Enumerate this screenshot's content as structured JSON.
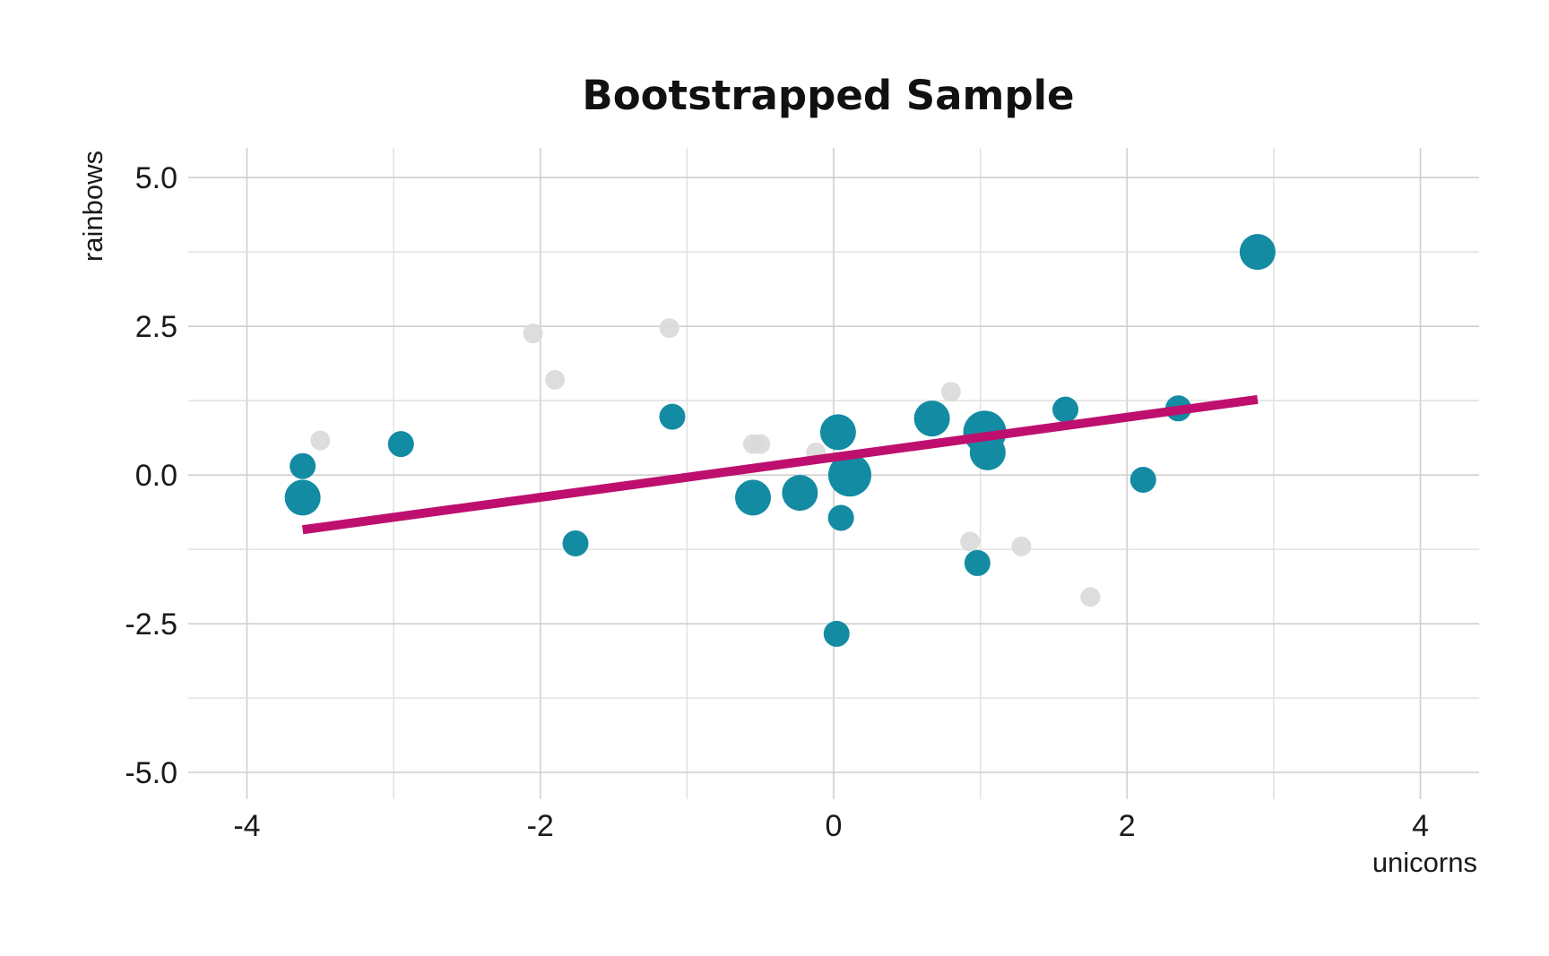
{
  "chart_data": {
    "type": "scatter",
    "title": "Bootstrapped Sample",
    "xlabel": "unicorns",
    "ylabel": "rainbows",
    "xlim": [
      -4.4,
      4.4
    ],
    "ylim": [
      -5.45,
      5.5
    ],
    "x_ticks": [
      -4,
      -2,
      0,
      2,
      4
    ],
    "x_tick_labels": [
      "-4",
      "-2",
      "0",
      "2",
      "4"
    ],
    "y_ticks": [
      5,
      2.5,
      0,
      -2.5,
      -5
    ],
    "y_tick_labels": [
      "5.0",
      "2.5",
      "0.0",
      "-2.5",
      "-5.0"
    ],
    "grid": true,
    "colors": {
      "sampled": "#138ba3",
      "not_sampled": "#d9d9d9",
      "fit_line": "#bf0f6e"
    },
    "not_sampled_points": [
      {
        "x": -3.5,
        "y": 0.58
      },
      {
        "x": -2.05,
        "y": 2.38
      },
      {
        "x": -1.9,
        "y": 1.6
      },
      {
        "x": -1.12,
        "y": 2.47
      },
      {
        "x": -0.55,
        "y": 0.52
      },
      {
        "x": -0.5,
        "y": 0.52
      },
      {
        "x": -0.12,
        "y": 0.38
      },
      {
        "x": 0.8,
        "y": 1.4
      },
      {
        "x": 0.93,
        "y": -1.12
      },
      {
        "x": 1.28,
        "y": -1.2
      },
      {
        "x": 1.75,
        "y": -2.05
      }
    ],
    "sampled_points": [
      {
        "x": -3.62,
        "y": 0.15,
        "count": 1
      },
      {
        "x": -3.62,
        "y": -0.38,
        "count": 2
      },
      {
        "x": -2.95,
        "y": 0.52,
        "count": 1
      },
      {
        "x": -1.76,
        "y": -1.15,
        "count": 1
      },
      {
        "x": -1.1,
        "y": 0.98,
        "count": 1
      },
      {
        "x": -0.55,
        "y": -0.38,
        "count": 2
      },
      {
        "x": -0.23,
        "y": -0.3,
        "count": 2
      },
      {
        "x": 0.03,
        "y": 0.72,
        "count": 2
      },
      {
        "x": 0.05,
        "y": -0.72,
        "count": 1
      },
      {
        "x": 0.02,
        "y": -2.67,
        "count": 1
      },
      {
        "x": 0.11,
        "y": 0.0,
        "count": 3
      },
      {
        "x": 0.67,
        "y": 0.95,
        "count": 2
      },
      {
        "x": 1.03,
        "y": 0.72,
        "count": 3
      },
      {
        "x": 1.05,
        "y": 0.38,
        "count": 2
      },
      {
        "x": 0.98,
        "y": -1.48,
        "count": 1
      },
      {
        "x": 1.58,
        "y": 1.1,
        "count": 1
      },
      {
        "x": 2.11,
        "y": -0.08,
        "count": 1
      },
      {
        "x": 2.35,
        "y": 1.12,
        "count": 1
      },
      {
        "x": 2.89,
        "y": 3.75,
        "count": 2
      }
    ],
    "fit_line": {
      "x": [
        -3.62,
        2.89
      ],
      "y": [
        -0.92,
        1.27
      ]
    }
  }
}
